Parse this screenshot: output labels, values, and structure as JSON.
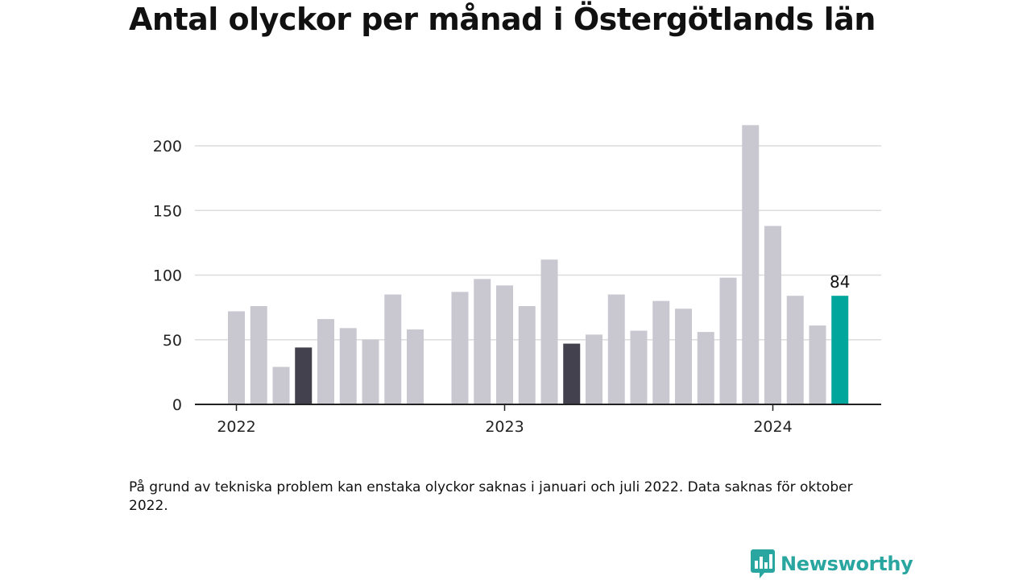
{
  "title": "Antal olyckor per månad i Östergötlands län",
  "footnote": "På grund av tekniska problem kan enstaka olyckor saknas i januari och juli 2022. Data saknas för oktober 2022.",
  "brand": {
    "name": "Newsworthy",
    "icon": "newsworthy-logo-icon",
    "color": "#2aa6a0"
  },
  "colors": {
    "bar_default": "#c9c8d0",
    "bar_highlight_dark": "#42414d",
    "bar_current": "#00a59c",
    "gridline": "#dcdcdc",
    "axis": "#222222"
  },
  "chart_data": {
    "type": "bar",
    "title": "Antal olyckor per månad i Östergötlands län",
    "xlabel": "",
    "ylabel": "",
    "ylim": [
      0,
      215
    ],
    "yticks": [
      0,
      50,
      100,
      150,
      200
    ],
    "xtick_labels": [
      "2022",
      "2023",
      "2024"
    ],
    "grid": true,
    "categories": [
      "2022-01",
      "2022-02",
      "2022-03",
      "2022-04",
      "2022-05",
      "2022-06",
      "2022-07",
      "2022-08",
      "2022-09",
      "2022-10",
      "2022-11",
      "2022-12",
      "2023-01",
      "2023-02",
      "2023-03",
      "2023-04",
      "2023-05",
      "2023-06",
      "2023-07",
      "2023-08",
      "2023-09",
      "2023-10",
      "2023-11",
      "2023-12",
      "2024-01",
      "2024-02",
      "2024-03",
      "2024-04"
    ],
    "values": [
      72,
      76,
      29,
      44,
      66,
      59,
      50,
      85,
      58,
      null,
      87,
      97,
      92,
      76,
      112,
      47,
      54,
      85,
      57,
      80,
      74,
      56,
      98,
      216,
      138,
      84,
      61,
      84
    ],
    "highlight": {
      "2022-04": "dark",
      "2023-04": "dark",
      "2024-04": "current"
    },
    "data_labels": [
      {
        "category": "2024-04",
        "text": "84"
      }
    ]
  }
}
